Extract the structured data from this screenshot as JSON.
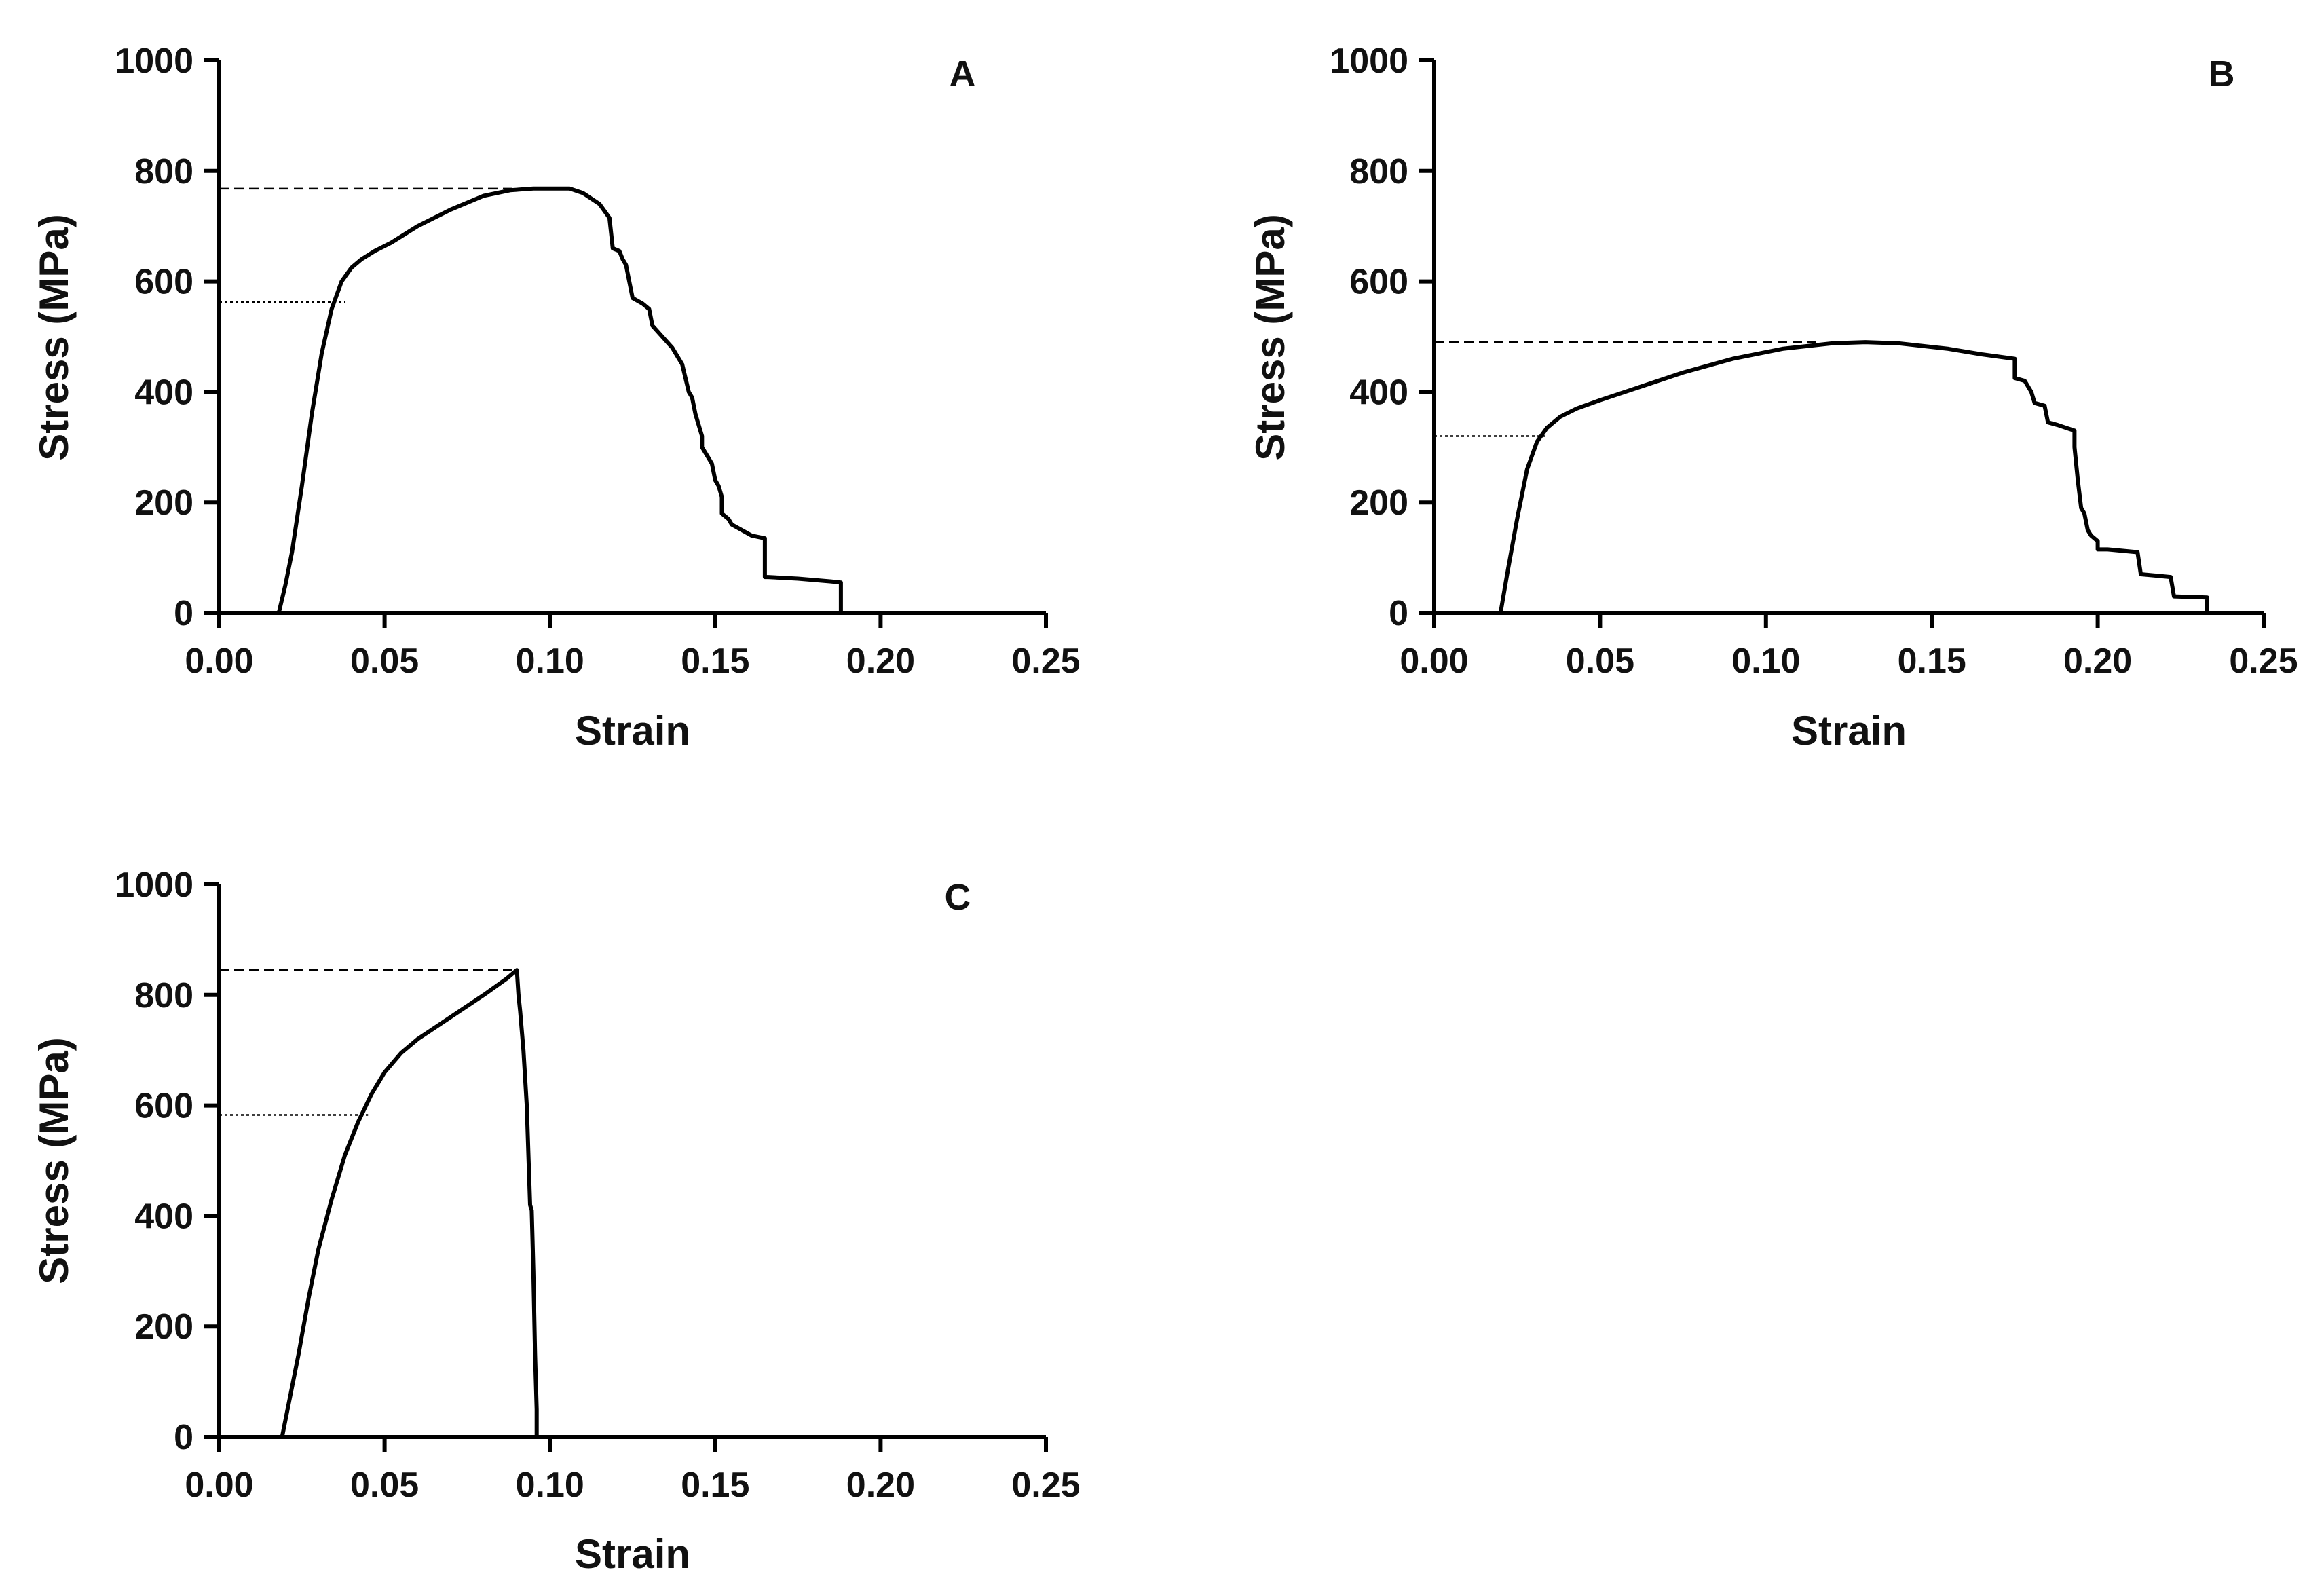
{
  "chart_data": [
    {
      "type": "line",
      "panel_label": "A",
      "xlabel": "Strain",
      "ylabel": "Stress (MPa)",
      "xlim": [
        0,
        0.25
      ],
      "ylim": [
        0,
        1000
      ],
      "x_ticks": [
        "0.00",
        "0.05",
        "0.10",
        "0.15",
        "0.20",
        "0.25"
      ],
      "y_ticks": [
        "0",
        "200",
        "400",
        "600",
        "800",
        "1000"
      ],
      "x_tick_values": [
        0,
        0.05,
        0.1,
        0.15,
        0.2,
        0.25
      ],
      "y_tick_values": [
        0,
        200,
        400,
        600,
        800,
        1000
      ],
      "grid": false,
      "ultimate_strength_line": {
        "y": 768,
        "x_end": 0.1
      },
      "yield_strength_line": {
        "y": 563,
        "x_end": 0.038
      },
      "series": [
        {
          "name": "A",
          "x": [
            0.018,
            0.02,
            0.022,
            0.025,
            0.028,
            0.031,
            0.034,
            0.037,
            0.04,
            0.043,
            0.047,
            0.052,
            0.06,
            0.07,
            0.08,
            0.088,
            0.095,
            0.1,
            0.106,
            0.11,
            0.115,
            0.118,
            0.119,
            0.121,
            0.122,
            0.123,
            0.124,
            0.125,
            0.128,
            0.13,
            0.131,
            0.134,
            0.137,
            0.14,
            0.142,
            0.143,
            0.144,
            0.146,
            0.146,
            0.148,
            0.149,
            0.15,
            0.151,
            0.152,
            0.152,
            0.154,
            0.155,
            0.158,
            0.161,
            0.165,
            0.165,
            0.166,
            0.175,
            0.185,
            0.188,
            0.188
          ],
          "y": [
            0,
            50,
            110,
            230,
            360,
            470,
            550,
            600,
            625,
            640,
            655,
            670,
            700,
            730,
            755,
            765,
            768,
            768,
            768,
            760,
            740,
            715,
            660,
            655,
            640,
            630,
            600,
            570,
            560,
            550,
            520,
            500,
            480,
            450,
            400,
            390,
            360,
            320,
            300,
            280,
            270,
            240,
            230,
            210,
            180,
            170,
            160,
            150,
            140,
            135,
            65,
            65,
            62,
            57,
            55,
            0
          ]
        }
      ]
    },
    {
      "type": "line",
      "panel_label": "B",
      "xlabel": "Strain",
      "ylabel": "Stress (MPa)",
      "xlim": [
        0,
        0.25
      ],
      "ylim": [
        0,
        1000
      ],
      "x_ticks": [
        "0.00",
        "0.05",
        "0.10",
        "0.15",
        "0.20",
        "0.25"
      ],
      "y_ticks": [
        "0",
        "200",
        "400",
        "600",
        "800",
        "1000"
      ],
      "x_tick_values": [
        0,
        0.05,
        0.1,
        0.15,
        0.2,
        0.25
      ],
      "y_tick_values": [
        0,
        200,
        400,
        600,
        800,
        1000
      ],
      "grid": false,
      "ultimate_strength_line": {
        "y": 490,
        "x_end": 0.115
      },
      "yield_strength_line": {
        "y": 320,
        "x_end": 0.034
      },
      "series": [
        {
          "name": "B",
          "x": [
            0,
            0.02,
            0.022,
            0.025,
            0.028,
            0.031,
            0.034,
            0.038,
            0.043,
            0.05,
            0.06,
            0.075,
            0.09,
            0.105,
            0.12,
            0.13,
            0.14,
            0.155,
            0.165,
            0.175,
            0.175,
            0.178,
            0.18,
            0.181,
            0.184,
            0.185,
            0.188,
            0.193,
            0.193,
            0.194,
            0.195,
            0.196,
            0.197,
            0.198,
            0.2,
            0.2,
            0.203,
            0.212,
            0.213,
            0.222,
            0.223,
            0.233,
            0.233,
            0.25
          ],
          "y": [
            0,
            0,
            70,
            170,
            260,
            310,
            335,
            355,
            370,
            385,
            405,
            435,
            460,
            478,
            488,
            490,
            488,
            478,
            468,
            460,
            425,
            420,
            400,
            380,
            375,
            345,
            340,
            330,
            300,
            240,
            190,
            180,
            150,
            140,
            130,
            115,
            115,
            110,
            70,
            65,
            30,
            28,
            0,
            0
          ]
        }
      ]
    },
    {
      "type": "line",
      "panel_label": "C",
      "xlabel": "Strain",
      "ylabel": "Stress (MPa)",
      "xlim": [
        0,
        0.25
      ],
      "ylim": [
        0,
        1000
      ],
      "x_ticks": [
        "0.00",
        "0.05",
        "0.10",
        "0.15",
        "0.20",
        "0.25"
      ],
      "y_ticks": [
        "0",
        "200",
        "400",
        "600",
        "800",
        "1000"
      ],
      "x_tick_values": [
        0,
        0.05,
        0.1,
        0.15,
        0.2,
        0.25
      ],
      "y_tick_values": [
        0,
        200,
        400,
        600,
        800,
        1000
      ],
      "grid": false,
      "ultimate_strength_line": {
        "y": 845,
        "x_end": 0.09
      },
      "yield_strength_line": {
        "y": 583,
        "x_end": 0.045
      },
      "series": [
        {
          "name": "C",
          "x": [
            0,
            0.019,
            0.021,
            0.024,
            0.027,
            0.03,
            0.034,
            0.038,
            0.042,
            0.046,
            0.05,
            0.055,
            0.06,
            0.07,
            0.08,
            0.087,
            0.089,
            0.09,
            0.0905,
            0.091,
            0.092,
            0.093,
            0.094,
            0.0945,
            0.095,
            0.0955,
            0.096,
            0.096,
            0.25
          ],
          "y": [
            0,
            0,
            60,
            150,
            250,
            340,
            430,
            510,
            570,
            620,
            660,
            695,
            720,
            760,
            800,
            830,
            840,
            845,
            800,
            770,
            700,
            600,
            420,
            410,
            300,
            150,
            50,
            0,
            0
          ]
        }
      ]
    }
  ]
}
